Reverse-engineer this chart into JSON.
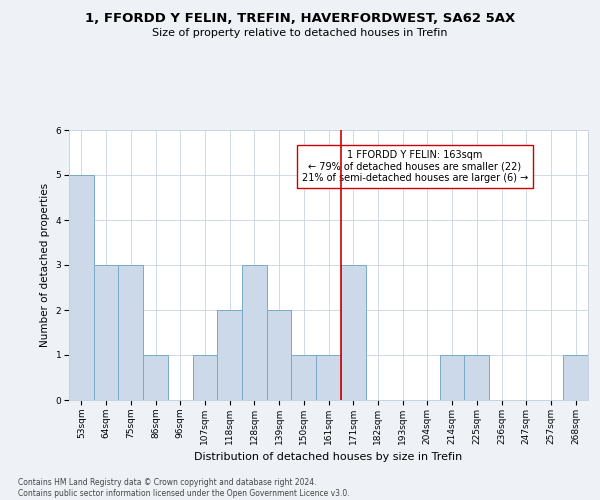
{
  "title": "1, FFORDD Y FELIN, TREFIN, HAVERFORDWEST, SA62 5AX",
  "subtitle": "Size of property relative to detached houses in Trefin",
  "xlabel": "Distribution of detached houses by size in Trefin",
  "ylabel": "Number of detached properties",
  "categories": [
    "53sqm",
    "64sqm",
    "75sqm",
    "86sqm",
    "96sqm",
    "107sqm",
    "118sqm",
    "128sqm",
    "139sqm",
    "150sqm",
    "161sqm",
    "171sqm",
    "182sqm",
    "193sqm",
    "204sqm",
    "214sqm",
    "225sqm",
    "236sqm",
    "247sqm",
    "257sqm",
    "268sqm"
  ],
  "values": [
    5,
    3,
    3,
    1,
    0,
    1,
    2,
    3,
    2,
    1,
    1,
    3,
    0,
    0,
    0,
    1,
    1,
    0,
    0,
    0,
    1
  ],
  "bar_color": "#ccd9e8",
  "bar_edge_color": "#7aaac8",
  "bar_edge_width": 0.7,
  "vline_x_index": 10.5,
  "vline_color": "#cc0000",
  "annotation_text": "1 FFORDD Y FELIN: 163sqm\n← 79% of detached houses are smaller (22)\n21% of semi-detached houses are larger (6) →",
  "annotation_box_color": "#ffffff",
  "annotation_box_edge_color": "#cc0000",
  "ylim": [
    0,
    6
  ],
  "yticks": [
    0,
    1,
    2,
    3,
    4,
    5,
    6
  ],
  "background_color": "#eef2f7",
  "plot_bg_color": "#ffffff",
  "grid_color": "#c8d4e0",
  "title_fontsize": 9.5,
  "subtitle_fontsize": 8,
  "xlabel_fontsize": 8,
  "ylabel_fontsize": 7.5,
  "tick_fontsize": 6.5,
  "annotation_fontsize": 7,
  "footer_fontsize": 5.5,
  "footer": "Contains HM Land Registry data © Crown copyright and database right 2024.\nContains public sector information licensed under the Open Government Licence v3.0."
}
